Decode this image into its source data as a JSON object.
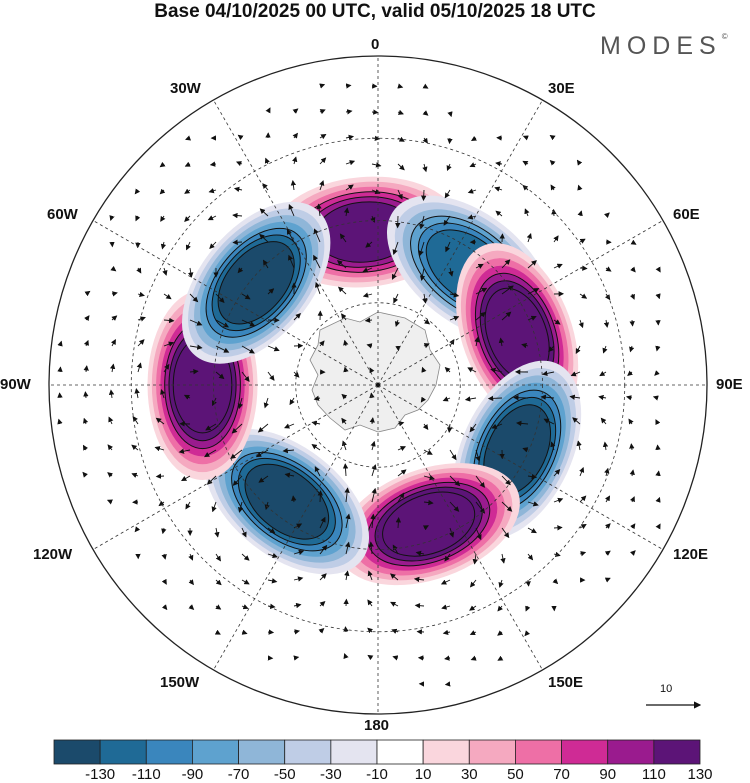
{
  "title": "Base 04/10/2025 00 UTC, valid 05/10/2025 18 UTC",
  "brand": "MODES",
  "brand_mark": "©",
  "longitude_labels": {
    "n": "0",
    "ne": "30E",
    "e1": "60E",
    "e": "90E",
    "se1": "120E",
    "se": "150E",
    "s": "180",
    "sw": "150W",
    "w1": "120W",
    "w": "90W",
    "nw1": "60W",
    "nw": "30W"
  },
  "reference_vector": "10",
  "colors": {
    "bins": [
      "#1b4a6b",
      "#1f6a96",
      "#3a86bd",
      "#5ea2cf",
      "#8fb6d8",
      "#bfcde6",
      "#e4e4f0",
      "#ffffff",
      "#fad6dd",
      "#f5a9c0",
      "#ee6fa6",
      "#cf2b95",
      "#9a1b8e",
      "#5c1477"
    ],
    "land": "#eeeeee"
  },
  "chart_data": {
    "type": "heatmap",
    "projection": "polar stereographic (south pole centered)",
    "title": "Base 04/10/2025 00 UTC, valid 05/10/2025 18 UTC",
    "colorbar_ticks": [
      "-130",
      "-110",
      "-90",
      "-70",
      "-50",
      "-30",
      "-10",
      "10",
      "30",
      "50",
      "70",
      "90",
      "110",
      "130"
    ],
    "colorbar_range": [
      -150,
      150
    ],
    "anomaly_centers": [
      {
        "lon": 355,
        "lat_radius_deg": 28,
        "value": 110,
        "sign": "positive"
      },
      {
        "lon": 38,
        "lat_radius_deg": 27,
        "value": -110,
        "sign": "negative"
      },
      {
        "lon": 70,
        "lat_radius_deg": 27,
        "value": 130,
        "sign": "positive"
      },
      {
        "lon": 115,
        "lat_radius_deg": 28,
        "value": -130,
        "sign": "negative"
      },
      {
        "lon": 160,
        "lat_radius_deg": 27,
        "value": 130,
        "sign": "positive"
      },
      {
        "lon": 218,
        "lat_radius_deg": 27,
        "value": -130,
        "sign": "negative"
      },
      {
        "lon": 270,
        "lat_radius_deg": 32,
        "value": 130,
        "sign": "positive"
      },
      {
        "lon": 310,
        "lat_radius_deg": 29,
        "value": -130,
        "sign": "negative"
      }
    ]
  }
}
